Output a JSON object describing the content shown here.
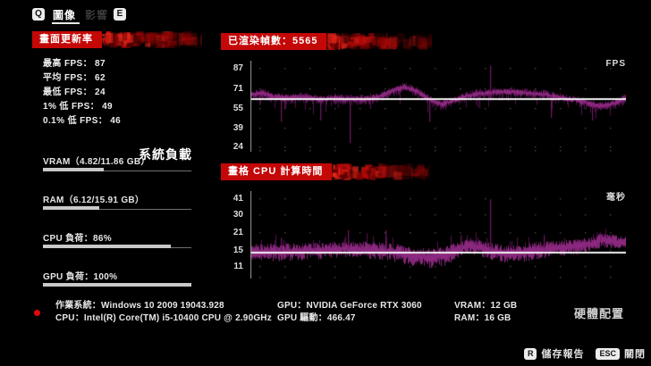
{
  "topbar": {
    "key_prev": "Q",
    "key_next": "E",
    "tabs": [
      {
        "label": "圖像",
        "active": true
      },
      {
        "label": "影響",
        "active": false
      }
    ]
  },
  "fps_panel": {
    "title": "畫面更新率",
    "stats": [
      {
        "label": "最高 FPS：",
        "value": "87"
      },
      {
        "label": "平均 FPS：",
        "value": "62"
      },
      {
        "label": "最低 FPS：",
        "value": "24"
      },
      {
        "label": "1% 低 FPS：",
        "value": "49"
      },
      {
        "label": "0.1% 低 FPS：",
        "value": "46"
      }
    ]
  },
  "system_load": {
    "title": "系統負載",
    "meters": [
      {
        "label": "VRAM（4.82/11.86 GB）",
        "percent": 41
      },
      {
        "label": "RAM（6.12/15.91 GB）",
        "percent": 38
      },
      {
        "label": "CPU 負荷：86%",
        "percent": 86
      },
      {
        "label": "GPU 負荷：100%",
        "percent": 100
      }
    ]
  },
  "hardware": {
    "title": "硬體配置",
    "lines": [
      [
        "作業系統：Windows 10 2009 19043.928",
        "CPU：Intel(R) Core(TM) i5-10400 CPU @ 2.90GHz"
      ],
      [
        "GPU：NVIDIA GeForce RTX 3060",
        "GPU 驅動：466.47"
      ],
      [
        "VRAM：12 GB",
        "RAM：16 GB"
      ]
    ]
  },
  "footer": {
    "actions": [
      {
        "key": "R",
        "label": "儲存報告"
      },
      {
        "key": "ESC",
        "label": "關閉"
      }
    ]
  },
  "colors": {
    "background": "#000000",
    "banner_red": "#c40707",
    "chart_purple_dark": "#581252",
    "chart_purple_bright": "#962d88",
    "avg_line_white": "#f2f2f2",
    "status_dot_red": "#e30808",
    "key_badge_bg": "#ececec",
    "inactive_tab_gray": "#565656"
  },
  "chart_data": [
    {
      "type": "area",
      "title": "已渲染幀數：5565",
      "unit": "FPS",
      "scale": "linear",
      "y_ticks": [
        87,
        71,
        55,
        39,
        24
      ],
      "ylim": [
        20,
        93
      ],
      "avg_line": 62,
      "envelope_x": [
        0,
        0.03,
        0.06,
        0.1,
        0.14,
        0.18,
        0.22,
        0.26,
        0.3,
        0.34,
        0.38,
        0.41,
        0.44,
        0.48,
        0.51,
        0.54,
        0.58,
        0.62,
        0.66,
        0.7,
        0.74,
        0.78,
        0.82,
        0.86,
        0.89,
        0.92,
        0.95,
        0.98,
        1
      ],
      "envelope_y": [
        66,
        67,
        64,
        63,
        64,
        62,
        63,
        62,
        62,
        64,
        69,
        72,
        69,
        61,
        58,
        61,
        65,
        67,
        68,
        68,
        67,
        66,
        64,
        62,
        60,
        57,
        57,
        60,
        63
      ],
      "noise_up": 4,
      "noise_down": 5,
      "tail_p": 0.16,
      "tail_len": 10,
      "tail_dir": -1,
      "spikes": [
        {
          "x": 0.265,
          "v": 27
        },
        {
          "x": 0.638,
          "v": 89
        },
        {
          "x": 0.08,
          "v": 44
        },
        {
          "x": 0.185,
          "v": 45
        },
        {
          "x": 0.475,
          "v": 44
        },
        {
          "x": 0.8,
          "v": 47
        },
        {
          "x": 0.91,
          "v": 45
        }
      ],
      "seed": 7
    },
    {
      "type": "area",
      "title": "畫格 CPU 計算時間",
      "unit": "毫秒",
      "scale": "log",
      "y_ticks": [
        41,
        30,
        21,
        15,
        11
      ],
      "ylim": [
        8.6,
        47
      ],
      "avg_line": 14.2,
      "envelope_x": [
        0,
        0.05,
        0.1,
        0.15,
        0.2,
        0.25,
        0.28,
        0.32,
        0.36,
        0.4,
        0.44,
        0.48,
        0.52,
        0.55,
        0.58,
        0.61,
        0.64,
        0.68,
        0.72,
        0.76,
        0.8,
        0.84,
        0.88,
        0.91,
        0.94,
        0.97,
        1
      ],
      "envelope_y": [
        14.3,
        14.4,
        14.5,
        14.8,
        15.0,
        15.3,
        15.2,
        15.0,
        14.8,
        14.0,
        13.2,
        13.0,
        13.5,
        15.0,
        16.3,
        15.8,
        14.8,
        14.0,
        14.2,
        14.8,
        15.4,
        15.8,
        16.2,
        17.0,
        18.3,
        17.6,
        17.2
      ],
      "noise_up": 2.2,
      "noise_down": 1.8,
      "tail_p": 0.14,
      "tail_len": 4,
      "tail_dir": 1,
      "spikes": [
        {
          "x": 0.638,
          "v": 40
        },
        {
          "x": 0.26,
          "v": 22
        },
        {
          "x": 0.08,
          "v": 19
        },
        {
          "x": 0.36,
          "v": 22
        },
        {
          "x": 0.56,
          "v": 20
        },
        {
          "x": 0.78,
          "v": 20
        },
        {
          "x": 0.93,
          "v": 21
        }
      ],
      "seed": 11
    }
  ]
}
